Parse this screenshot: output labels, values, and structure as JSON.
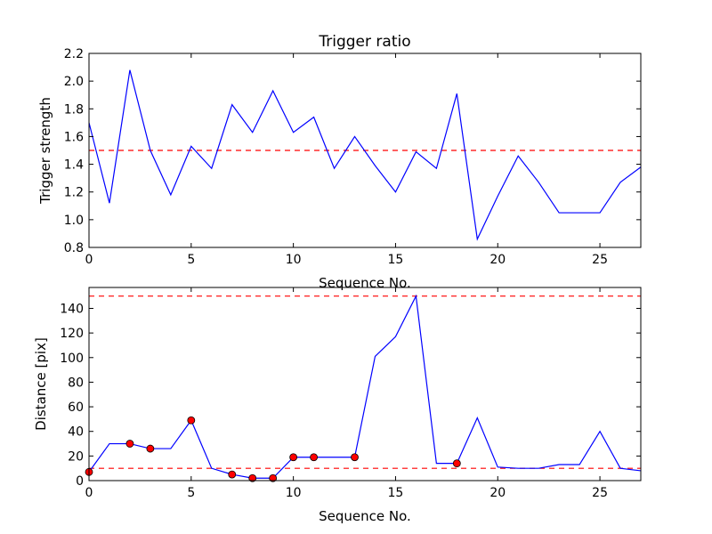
{
  "chart_data": [
    {
      "type": "line",
      "title": "Trigger ratio",
      "xlabel": "Sequence No.",
      "ylabel": "Trigger strength",
      "xlim": [
        0,
        27
      ],
      "ylim": [
        0.8,
        2.2
      ],
      "xticks": [
        "0",
        "5",
        "10",
        "15",
        "20",
        "25"
      ],
      "yticks": [
        "0.8",
        "1.0",
        "1.2",
        "1.4",
        "1.6",
        "1.8",
        "2.0",
        "2.2"
      ],
      "series": [
        {
          "color": "#0000ff",
          "x": [
            0,
            1,
            2,
            3,
            4,
            5,
            6,
            7,
            8,
            9,
            10,
            11,
            12,
            13,
            14,
            15,
            16,
            17,
            18,
            19,
            20,
            21,
            22,
            23,
            24,
            25,
            26,
            27
          ],
          "y": [
            1.7,
            1.12,
            2.08,
            1.5,
            1.18,
            1.53,
            1.37,
            1.83,
            1.63,
            1.93,
            1.63,
            1.74,
            1.37,
            1.6,
            1.39,
            1.2,
            1.49,
            1.37,
            1.91,
            0.86,
            1.17,
            1.46,
            1.27,
            1.05,
            1.05,
            1.05,
            1.27,
            1.38
          ]
        }
      ],
      "hlines": [
        {
          "y": 1.5,
          "color": "#ff0000",
          "style": "dashed"
        }
      ]
    },
    {
      "type": "line",
      "title": "",
      "xlabel": "Sequence No.",
      "ylabel": "Distance [pix]",
      "xlim": [
        0,
        27
      ],
      "ylim": [
        0,
        157
      ],
      "xticks": [
        "0",
        "5",
        "10",
        "15",
        "20",
        "25"
      ],
      "yticks": [
        "0",
        "20",
        "40",
        "60",
        "80",
        "100",
        "120",
        "140"
      ],
      "series": [
        {
          "color": "#0000ff",
          "x": [
            0,
            1,
            2,
            3,
            4,
            5,
            6,
            7,
            8,
            9,
            10,
            11,
            12,
            13,
            14,
            15,
            16,
            17,
            18,
            19,
            20,
            21,
            22,
            23,
            24,
            25,
            26,
            27
          ],
          "y": [
            7,
            30,
            30,
            26,
            26,
            49,
            10,
            5,
            2,
            2,
            19,
            19,
            19,
            19,
            101,
            117,
            150,
            14,
            14,
            51,
            11,
            10,
            10,
            13,
            13,
            40,
            10,
            8
          ]
        }
      ],
      "markers": {
        "color": "#ff0000",
        "x": [
          0,
          2,
          3,
          5,
          7,
          8,
          9,
          10,
          11,
          13,
          18
        ],
        "y": [
          7,
          30,
          26,
          49,
          5,
          2,
          2,
          19,
          19,
          19,
          14
        ]
      },
      "hlines": [
        {
          "y": 150,
          "color": "#ff0000",
          "style": "dashed"
        },
        {
          "y": 10,
          "color": "#ff0000",
          "style": "dashed"
        }
      ]
    }
  ]
}
